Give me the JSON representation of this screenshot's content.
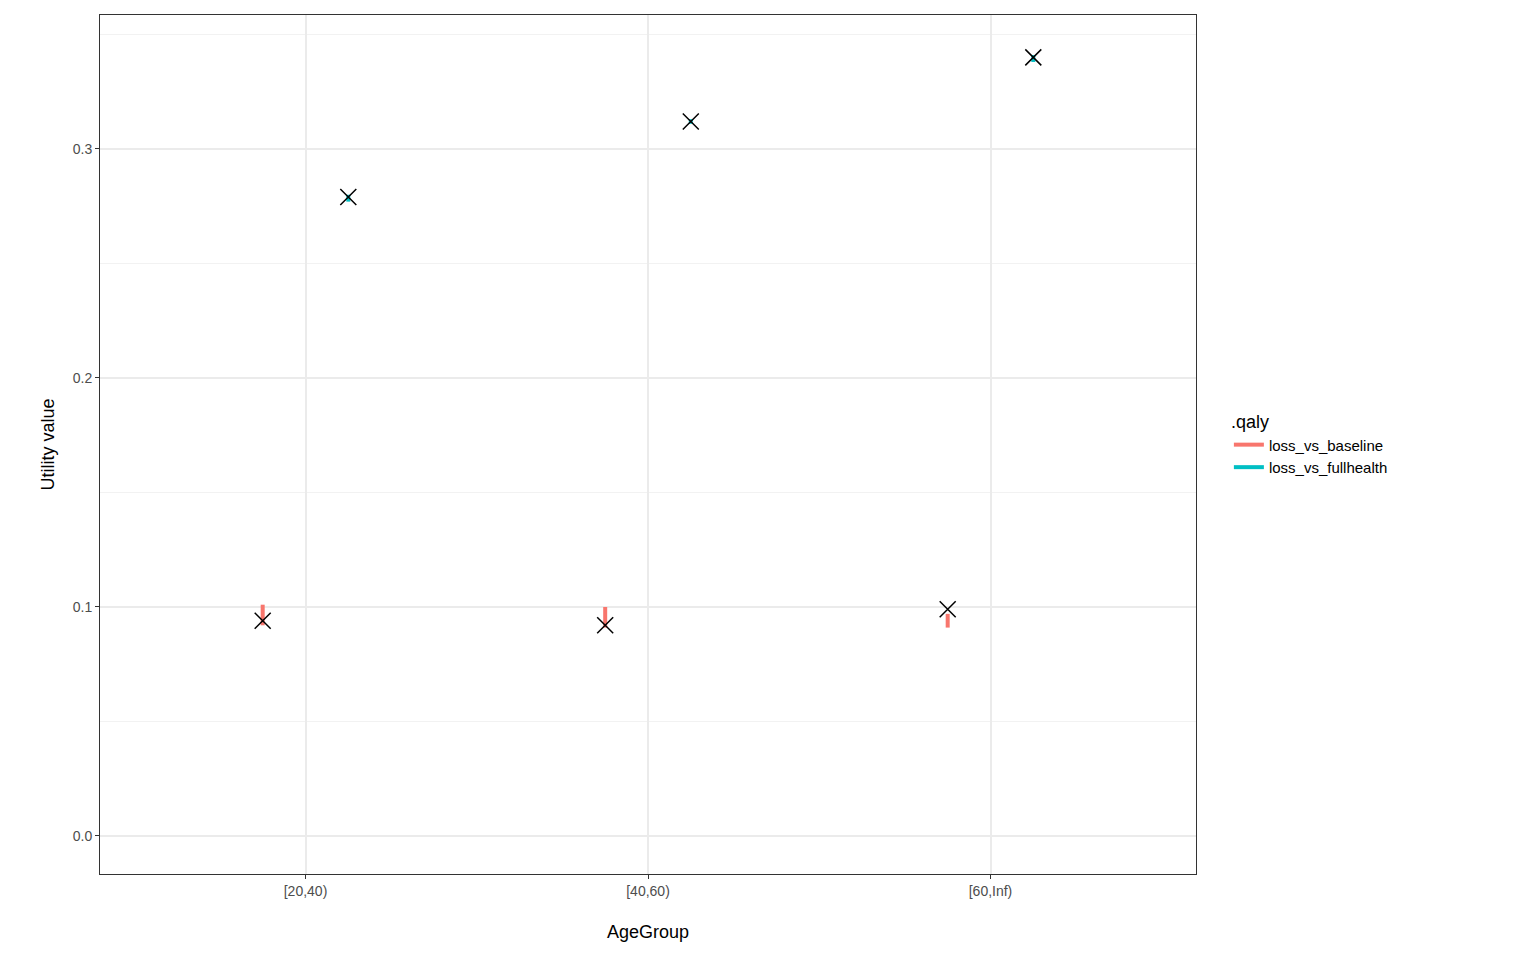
{
  "chart_data": {
    "type": "pointrange",
    "x_label": "AgeGroup",
    "y_label": "Utility value",
    "legend_title": ".qaly",
    "legend": "right",
    "grid": true,
    "marker": "x",
    "categories": [
      "[20,40)",
      "[40,60)",
      "[60,Inf)"
    ],
    "series": [
      {
        "name": "loss_vs_baseline",
        "color": "#f8766d",
        "values": [
          0.094,
          0.092,
          0.099
        ],
        "lower": [
          0.092,
          0.091,
          0.091
        ],
        "upper": [
          0.101,
          0.1,
          0.097
        ]
      },
      {
        "name": "loss_vs_fullhealth",
        "color": "#00bfc4",
        "values": [
          0.279,
          0.312,
          0.34
        ],
        "lower": [
          0.277,
          0.311,
          0.338
        ],
        "upper": [
          0.28,
          0.313,
          0.341
        ]
      }
    ],
    "ylim": [
      -0.0166,
      0.3585
    ],
    "yticks": [
      {
        "value": 0,
        "label": "0.0"
      },
      {
        "value": 0.1,
        "label": "0.1"
      },
      {
        "value": 0.2,
        "label": "0.2"
      },
      {
        "value": 0.3,
        "label": "0.3"
      }
    ]
  }
}
